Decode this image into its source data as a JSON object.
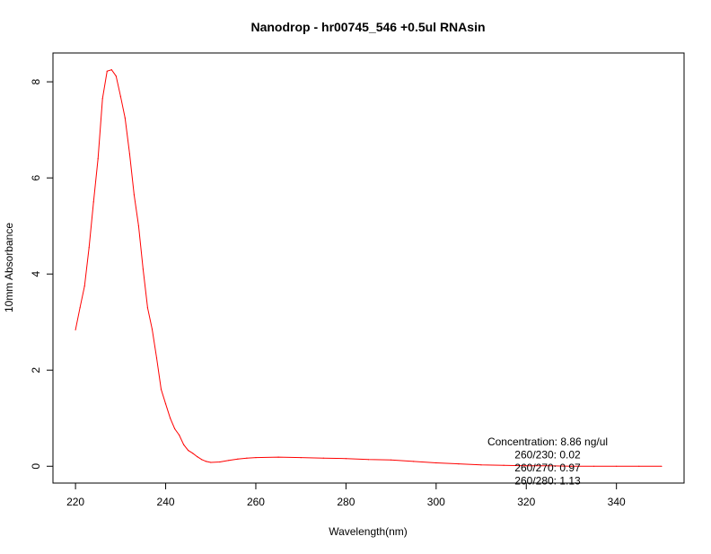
{
  "chart_data": {
    "type": "line",
    "title": "Nanodrop - hr00745_546 +0.5ul RNAsin",
    "xlabel": "Wavelength(nm)",
    "ylabel": "10mm Absorbance",
    "xlim": [
      215,
      355
    ],
    "ylim": [
      -0.35,
      8.6
    ],
    "x_ticks": [
      220,
      240,
      260,
      280,
      300,
      320,
      340
    ],
    "y_ticks": [
      0,
      2,
      4,
      6,
      8
    ],
    "grid": false,
    "line_color": "#ff0000",
    "series": [
      {
        "x": [
          220,
          221,
          222,
          223,
          224,
          225,
          226,
          227,
          228,
          229,
          230,
          231,
          232,
          233,
          234,
          235,
          236,
          237,
          238,
          239,
          240,
          241,
          242,
          243,
          244,
          245,
          246,
          247,
          248,
          249,
          250,
          252,
          254,
          256,
          258,
          260,
          265,
          270,
          275,
          280,
          285,
          290,
          295,
          300,
          305,
          310,
          315,
          320,
          325,
          330,
          335,
          340,
          345,
          350
        ],
        "values": [
          2.84,
          3.3,
          3.75,
          4.55,
          5.5,
          6.4,
          7.65,
          8.22,
          8.25,
          8.12,
          7.7,
          7.25,
          6.5,
          5.65,
          5.0,
          4.1,
          3.3,
          2.85,
          2.25,
          1.6,
          1.3,
          1.0,
          0.78,
          0.65,
          0.45,
          0.33,
          0.27,
          0.2,
          0.14,
          0.1,
          0.08,
          0.09,
          0.12,
          0.15,
          0.17,
          0.18,
          0.19,
          0.18,
          0.17,
          0.16,
          0.14,
          0.13,
          0.1,
          0.07,
          0.05,
          0.03,
          0.02,
          0.01,
          0.01,
          0.0,
          0.0,
          0.0,
          0.0,
          0.0
        ]
      }
    ],
    "annotations": [
      "Concentration: 8.86 ng/ul",
      "260/230: 0.02",
      "260/270: 0.97",
      "260/280: 1.13"
    ]
  }
}
